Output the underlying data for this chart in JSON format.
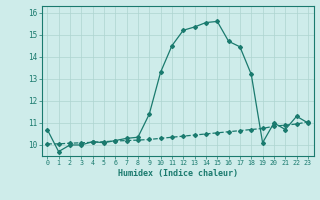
{
  "title": "",
  "xlabel": "Humidex (Indice chaleur)",
  "x": [
    0,
    1,
    2,
    3,
    4,
    5,
    6,
    7,
    8,
    9,
    10,
    11,
    12,
    13,
    14,
    15,
    16,
    17,
    18,
    19,
    20,
    21,
    22,
    23
  ],
  "y_main": [
    10.7,
    9.7,
    10.0,
    10.0,
    10.15,
    10.1,
    10.2,
    10.3,
    10.35,
    11.4,
    13.3,
    14.5,
    15.2,
    15.35,
    15.55,
    15.6,
    14.7,
    14.45,
    13.2,
    10.1,
    11.0,
    10.7,
    11.3,
    11.0
  ],
  "y_avg": [
    10.05,
    10.05,
    10.08,
    10.1,
    10.12,
    10.15,
    10.18,
    10.2,
    10.22,
    10.25,
    10.3,
    10.35,
    10.4,
    10.45,
    10.5,
    10.55,
    10.6,
    10.65,
    10.7,
    10.75,
    10.85,
    10.9,
    10.95,
    11.05
  ],
  "ylim": [
    9.5,
    16.3
  ],
  "yticks": [
    10,
    11,
    12,
    13,
    14,
    15,
    16
  ],
  "xlim": [
    -0.5,
    23.5
  ],
  "line_color": "#1a7a6e",
  "bg_color": "#ceecea",
  "grid_color": "#aed4d0",
  "markersize": 2.0,
  "linewidth": 0.9
}
